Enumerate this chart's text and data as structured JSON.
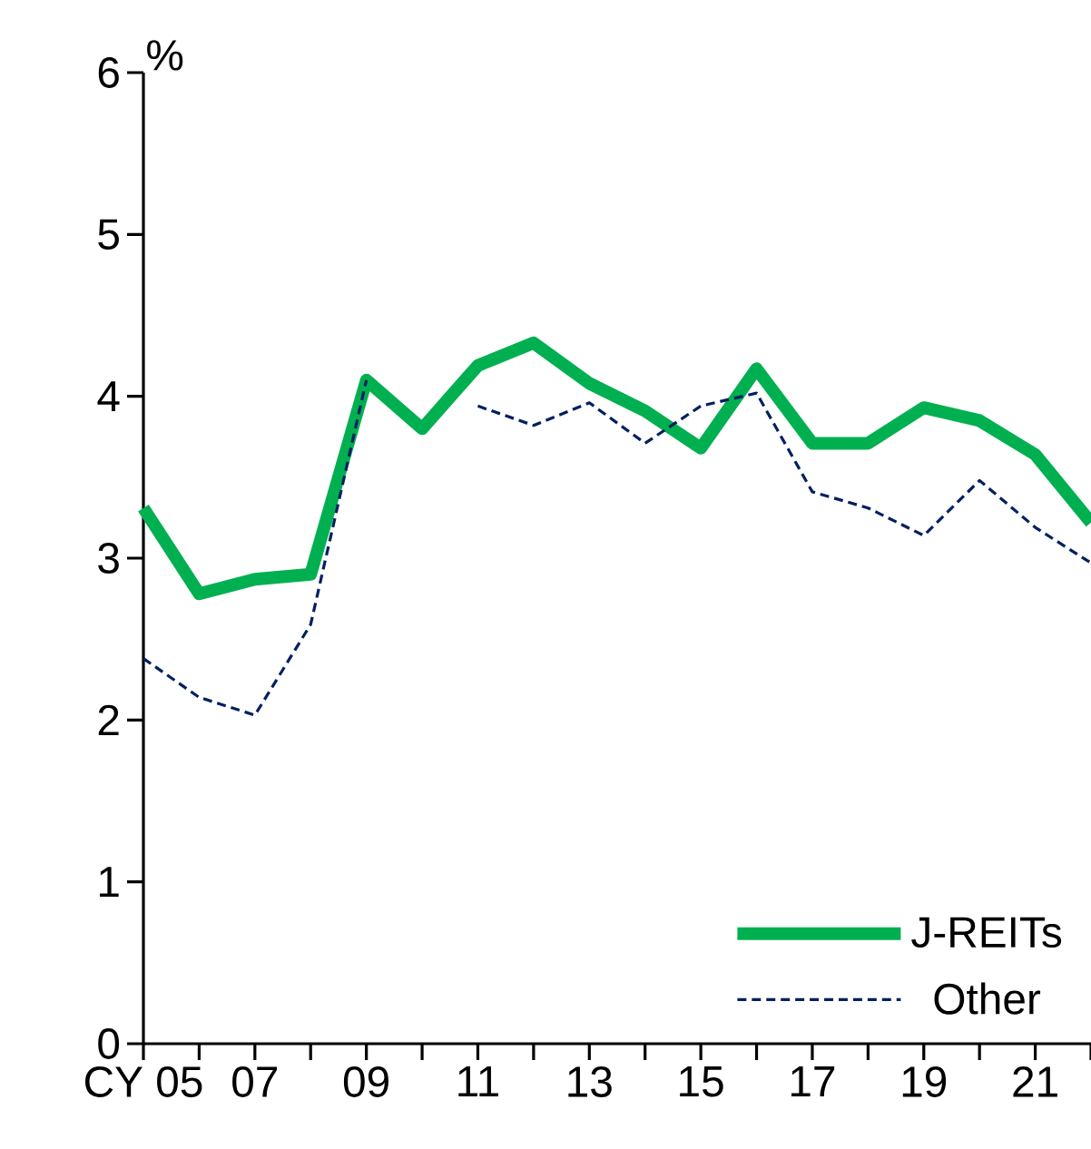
{
  "chart_data": {
    "type": "line",
    "ylabel": "%",
    "categories": [
      "CY 05",
      null,
      "07",
      null,
      "09",
      null,
      "11",
      null,
      "13",
      null,
      "15",
      null,
      "17",
      null,
      "19",
      null,
      "21",
      null
    ],
    "series": [
      {
        "name": "J-REITs",
        "color": "#00b050",
        "line_style": "solid",
        "values": [
          3.31,
          2.78,
          2.87,
          2.9,
          4.1,
          3.8,
          4.19,
          4.33,
          4.08,
          3.91,
          3.68,
          4.17,
          3.71,
          3.71,
          3.93,
          3.85,
          3.64,
          3.22
        ]
      },
      {
        "name": "Other",
        "color": "#002060",
        "line_style": "dashed",
        "values": [
          2.38,
          2.14,
          2.03,
          2.59,
          4.1,
          null,
          3.94,
          3.82,
          3.96,
          3.71,
          3.94,
          4.02,
          3.41,
          3.31,
          3.14,
          3.48,
          3.19,
          2.97
        ]
      }
    ],
    "ylim": [
      0,
      6
    ],
    "yticks": [
      0,
      1,
      2,
      3,
      4,
      5,
      6
    ],
    "grid": false,
    "legend": "bottom right",
    "marker": "none"
  }
}
